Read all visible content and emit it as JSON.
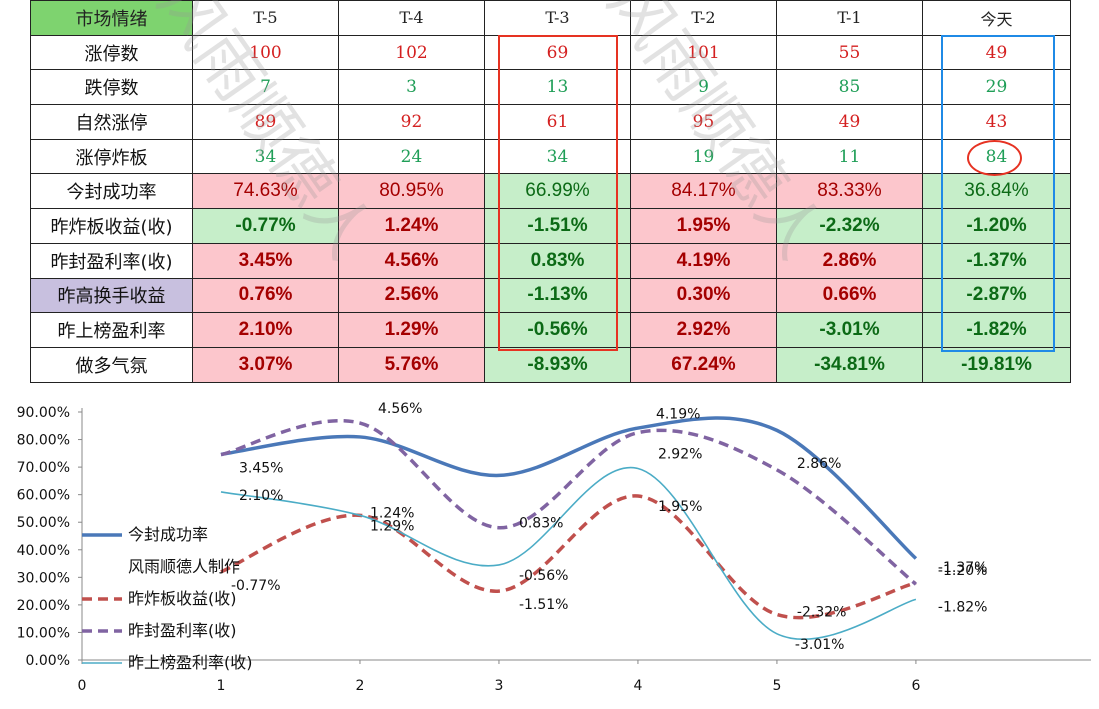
{
  "table": {
    "header": [
      "市场情绪",
      "T-5",
      "T-4",
      "T-3",
      "T-2",
      "T-1",
      "今天"
    ],
    "rows": [
      {
        "label": "涨停数",
        "values": [
          "100",
          "102",
          "69",
          "101",
          "55",
          "49"
        ]
      },
      {
        "label": "跌停数",
        "values": [
          "7",
          "3",
          "13",
          "9",
          "85",
          "29"
        ]
      },
      {
        "label": "自然涨停",
        "values": [
          "89",
          "92",
          "61",
          "95",
          "49",
          "43"
        ]
      },
      {
        "label": "涨停炸板",
        "values": [
          "34",
          "24",
          "34",
          "19",
          "11",
          "84"
        ]
      },
      {
        "label": "今封成功率",
        "values": [
          "74.63%",
          "80.95%",
          "66.99%",
          "84.17%",
          "83.33%",
          "36.84%"
        ]
      },
      {
        "label": "昨炸板收益(收)",
        "values": [
          "-0.77%",
          "1.24%",
          "-1.51%",
          "1.95%",
          "-2.32%",
          "-1.20%"
        ]
      },
      {
        "label": "昨封盈利率(收)",
        "values": [
          "3.45%",
          "4.56%",
          "0.83%",
          "4.19%",
          "2.86%",
          "-1.37%"
        ]
      },
      {
        "label": "昨高换手收益",
        "values": [
          "0.76%",
          "2.56%",
          "-1.13%",
          "0.30%",
          "0.66%",
          "-2.87%"
        ]
      },
      {
        "label": "昨上榜盈利率",
        "values": [
          "2.10%",
          "1.29%",
          "-0.56%",
          "2.92%",
          "-3.01%",
          "-1.82%"
        ]
      },
      {
        "label": "做多气氛",
        "values": [
          "3.07%",
          "5.76%",
          "-8.93%",
          "67.24%",
          "-34.81%",
          "-19.81%"
        ]
      }
    ]
  },
  "watermark": "风雨顺德人",
  "colors": {
    "header_green": "#7ed36f",
    "pink": "#fcc6cc",
    "light_green": "#c6eec9",
    "purple": "#c8c0df",
    "red_text": "#d42020",
    "green_text": "#1f9e57",
    "dark_red_text": "#a40000",
    "dark_green_text": "#0c6a16",
    "highlight_red": "#e63222",
    "highlight_blue": "#1f8ae6"
  },
  "chart_data": {
    "type": "line",
    "x": [
      1,
      2,
      3,
      4,
      5,
      6
    ],
    "xticks": [
      "0",
      "1",
      "2",
      "3",
      "4",
      "5",
      "6"
    ],
    "xlim": [
      0,
      6.9
    ],
    "ylim": [
      0,
      90
    ],
    "yticks": [
      "0.00%",
      "10.00%",
      "20.00%",
      "30.00%",
      "40.00%",
      "50.00%",
      "60.00%",
      "70.00%",
      "80.00%",
      "90.00%"
    ],
    "legend_extra": "风雨顺德人制作",
    "series": [
      {
        "name": "今封成功率",
        "values": [
          74.63,
          80.95,
          66.99,
          84.17,
          83.33,
          36.84
        ],
        "color": "#4a78b8",
        "dash": "solid",
        "labels": []
      },
      {
        "name": "昨炸板收益(收)",
        "values": [
          32,
          52.5,
          25,
          59.5,
          16.5,
          28
        ],
        "color": "#c0504d",
        "dash": "dashed",
        "labels": [
          "-0.77%",
          "1.24%",
          "-1.51%",
          "1.95%",
          "-2.32%",
          "-1.20%"
        ]
      },
      {
        "name": "昨封盈利率(收)",
        "values": [
          74.5,
          86,
          48,
          82.5,
          69,
          27.5
        ],
        "color": "#8064a2",
        "dash": "dashed",
        "labels": [
          "3.45%",
          "4.56%",
          "0.83%",
          "4.19%",
          "2.86%",
          "-1.37%"
        ]
      },
      {
        "name": "昨上榜盈利率(收)",
        "values": [
          61,
          52.5,
          34.5,
          69.5,
          9.5,
          22
        ],
        "color": "#4bacc6",
        "dash": "solid",
        "labels": [
          "2.10%",
          "1.29%",
          "-0.56%",
          "2.92%",
          "-3.01%",
          "-1.82%"
        ]
      }
    ]
  }
}
